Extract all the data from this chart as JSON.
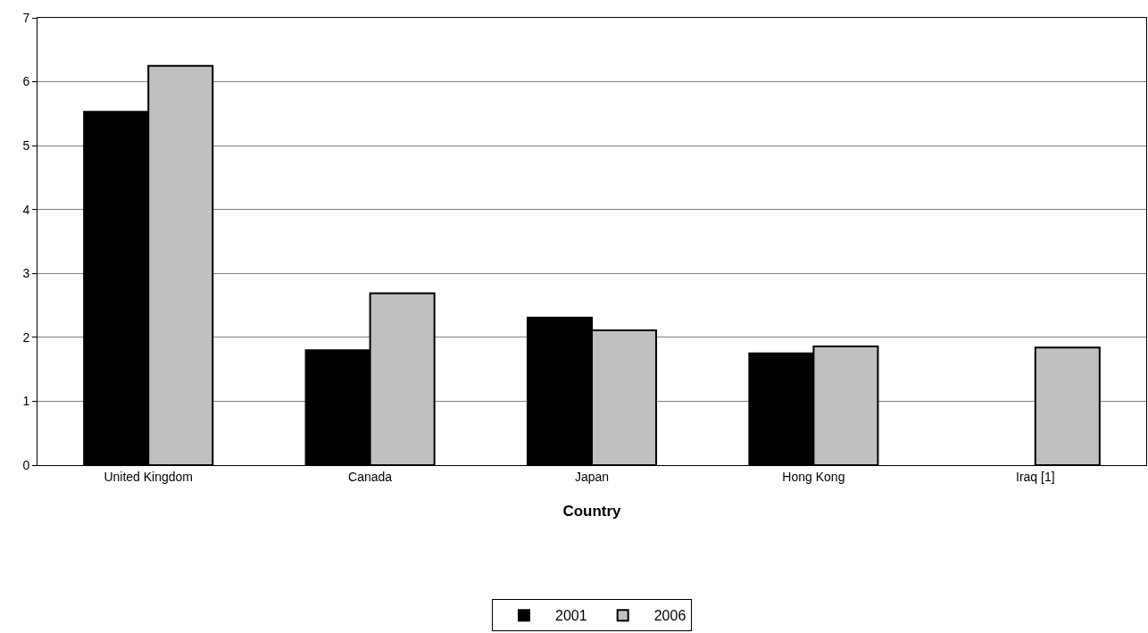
{
  "chart_data": {
    "type": "bar",
    "xlabel": "Country",
    "categories": [
      "United Kingdom",
      "Canada",
      "Japan",
      "Hong Kong",
      "Iraq [1]"
    ],
    "series": [
      {
        "name": "2001",
        "color": "#000000",
        "values": [
          5.53,
          1.8,
          2.31,
          1.75,
          null
        ]
      },
      {
        "name": "2006",
        "color": "#c0c0c0",
        "values": [
          6.25,
          2.69,
          2.11,
          1.86,
          1.84
        ]
      }
    ],
    "ylim": [
      0,
      7
    ],
    "yticks": [
      0,
      1,
      2,
      3,
      4,
      5,
      6,
      7
    ],
    "grid": "y",
    "legend": "bottom"
  }
}
